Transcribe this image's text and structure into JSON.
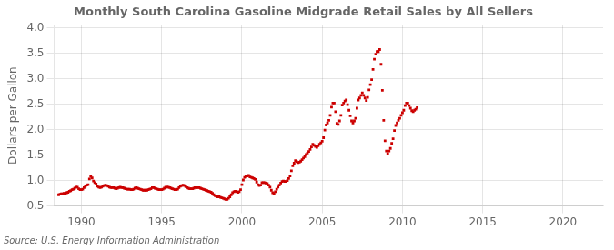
{
  "chart_data": {
    "type": "scatter",
    "title": "Monthly South Carolina Gasoline Midgrade Retail Sales by All Sellers",
    "y_label": "Dollars per Gallon",
    "annotations": [
      "Source: U.S. Energy Information Administration"
    ],
    "color": "#cc0000",
    "marker": "square",
    "grid": true,
    "xlim": [
      1988.3,
      2022.5
    ],
    "ylim": [
      0.5,
      4.05
    ],
    "xticks": [
      1990,
      1995,
      2000,
      2005,
      2010,
      2015,
      2020
    ],
    "yticks": [
      0.5,
      {
        "value": 1.0,
        "label": "1.0"
      },
      1.5,
      {
        "value": 2.0,
        "label": "2.0"
      },
      2.5,
      {
        "value": 3.0,
        "label": "3.0"
      },
      3.5,
      {
        "value": 4.0,
        "label": "4.0"
      }
    ],
    "x": [
      1988.583,
      1988.667,
      1988.75,
      1988.833,
      1988.917,
      1989.0,
      1989.083,
      1989.167,
      1989.25,
      1989.333,
      1989.417,
      1989.5,
      1989.583,
      1989.667,
      1989.75,
      1989.833,
      1989.917,
      1990.0,
      1990.083,
      1990.167,
      1990.25,
      1990.333,
      1990.417,
      1990.5,
      1990.583,
      1990.667,
      1990.75,
      1990.833,
      1990.917,
      1991.0,
      1991.083,
      1991.167,
      1991.25,
      1991.333,
      1991.417,
      1991.5,
      1991.583,
      1991.667,
      1991.75,
      1991.833,
      1991.917,
      1992.0,
      1992.083,
      1992.167,
      1992.25,
      1992.333,
      1992.417,
      1992.5,
      1992.583,
      1992.667,
      1992.75,
      1992.833,
      1992.917,
      1993.0,
      1993.083,
      1993.167,
      1993.25,
      1993.333,
      1993.417,
      1993.5,
      1993.583,
      1993.667,
      1993.75,
      1993.833,
      1993.917,
      1994.0,
      1994.083,
      1994.167,
      1994.25,
      1994.333,
      1994.417,
      1994.5,
      1994.583,
      1994.667,
      1994.75,
      1994.833,
      1994.917,
      1995.0,
      1995.083,
      1995.167,
      1995.25,
      1995.333,
      1995.417,
      1995.5,
      1995.583,
      1995.667,
      1995.75,
      1995.833,
      1995.917,
      1996.0,
      1996.083,
      1996.167,
      1996.25,
      1996.333,
      1996.417,
      1996.5,
      1996.583,
      1996.667,
      1996.75,
      1996.833,
      1996.917,
      1997.0,
      1997.083,
      1997.167,
      1997.25,
      1997.333,
      1997.417,
      1997.5,
      1997.583,
      1997.667,
      1997.75,
      1997.833,
      1997.917,
      1998.0,
      1998.083,
      1998.167,
      1998.25,
      1998.333,
      1998.417,
      1998.5,
      1998.583,
      1998.667,
      1998.75,
      1998.833,
      1998.917,
      1999.0,
      1999.083,
      1999.167,
      1999.25,
      1999.333,
      1999.417,
      1999.5,
      1999.583,
      1999.667,
      1999.75,
      1999.833,
      1999.917,
      2000.0,
      2000.083,
      2000.167,
      2000.25,
      2000.333,
      2000.417,
      2000.5,
      2000.583,
      2000.667,
      2000.75,
      2000.833,
      2000.917,
      2001.0,
      2001.083,
      2001.167,
      2001.25,
      2001.333,
      2001.417,
      2001.5,
      2001.583,
      2001.667,
      2001.75,
      2001.833,
      2001.917,
      2002.0,
      2002.083,
      2002.167,
      2002.25,
      2002.333,
      2002.417,
      2002.5,
      2002.583,
      2002.667,
      2002.75,
      2002.833,
      2002.917,
      2003.0,
      2003.083,
      2003.167,
      2003.25,
      2003.333,
      2003.417,
      2003.5,
      2003.583,
      2003.667,
      2003.75,
      2003.833,
      2003.917,
      2004.0,
      2004.083,
      2004.167,
      2004.25,
      2004.333,
      2004.417,
      2004.5,
      2004.583,
      2004.667,
      2004.75,
      2004.833,
      2004.917,
      2005.0,
      2005.083,
      2005.167,
      2005.25,
      2005.333,
      2005.417,
      2005.5,
      2005.583,
      2005.667,
      2005.75,
      2005.833,
      2005.917,
      2006.0,
      2006.083,
      2006.167,
      2006.25,
      2006.333,
      2006.417,
      2006.5,
      2006.583,
      2006.667,
      2006.75,
      2006.833,
      2006.917,
      2007.0,
      2007.083,
      2007.167,
      2007.25,
      2007.333,
      2007.417,
      2007.5,
      2007.583,
      2007.667,
      2007.75,
      2007.833,
      2007.917,
      2008.0,
      2008.083,
      2008.167,
      2008.25,
      2008.333,
      2008.417,
      2008.5,
      2008.583,
      2008.667,
      2008.75,
      2008.833,
      2008.917,
      2009.0,
      2009.083,
      2009.167,
      2009.25,
      2009.333,
      2009.417,
      2009.5,
      2009.583,
      2009.667,
      2009.75,
      2009.833,
      2009.917,
      2010.0,
      2010.083,
      2010.167,
      2010.25,
      2010.333,
      2010.417,
      2010.5,
      2010.583,
      2010.667,
      2010.75,
      2010.833,
      2010.917
    ],
    "values": [
      0.72,
      0.73,
      0.74,
      0.74,
      0.75,
      0.75,
      0.76,
      0.77,
      0.79,
      0.8,
      0.82,
      0.83,
      0.85,
      0.87,
      0.87,
      0.84,
      0.82,
      0.82,
      0.83,
      0.86,
      0.89,
      0.91,
      0.92,
      1.03,
      1.08,
      1.05,
      0.99,
      0.96,
      0.93,
      0.89,
      0.87,
      0.86,
      0.87,
      0.89,
      0.9,
      0.91,
      0.9,
      0.89,
      0.87,
      0.86,
      0.86,
      0.86,
      0.85,
      0.84,
      0.85,
      0.86,
      0.87,
      0.86,
      0.86,
      0.85,
      0.84,
      0.83,
      0.83,
      0.83,
      0.82,
      0.82,
      0.83,
      0.85,
      0.86,
      0.85,
      0.84,
      0.83,
      0.82,
      0.81,
      0.81,
      0.81,
      0.81,
      0.82,
      0.83,
      0.84,
      0.86,
      0.86,
      0.85,
      0.84,
      0.83,
      0.82,
      0.82,
      0.82,
      0.83,
      0.85,
      0.87,
      0.87,
      0.87,
      0.86,
      0.85,
      0.84,
      0.83,
      0.82,
      0.82,
      0.83,
      0.86,
      0.89,
      0.9,
      0.91,
      0.9,
      0.88,
      0.86,
      0.85,
      0.84,
      0.84,
      0.84,
      0.85,
      0.86,
      0.86,
      0.86,
      0.86,
      0.85,
      0.84,
      0.83,
      0.82,
      0.81,
      0.8,
      0.79,
      0.78,
      0.77,
      0.75,
      0.72,
      0.7,
      0.69,
      0.68,
      0.68,
      0.67,
      0.66,
      0.65,
      0.64,
      0.63,
      0.63,
      0.65,
      0.68,
      0.72,
      0.76,
      0.78,
      0.79,
      0.78,
      0.77,
      0.78,
      0.82,
      0.92,
      1.01,
      1.06,
      1.08,
      1.09,
      1.1,
      1.07,
      1.06,
      1.05,
      1.04,
      1.02,
      0.97,
      0.92,
      0.9,
      0.91,
      0.96,
      0.96,
      0.96,
      0.95,
      0.94,
      0.91,
      0.87,
      0.81,
      0.76,
      0.75,
      0.78,
      0.83,
      0.87,
      0.91,
      0.95,
      0.98,
      0.99,
      0.98,
      0.98,
      1.0,
      1.04,
      1.09,
      1.19,
      1.29,
      1.34,
      1.39,
      1.37,
      1.35,
      1.36,
      1.38,
      1.41,
      1.44,
      1.47,
      1.51,
      1.54,
      1.57,
      1.61,
      1.66,
      1.71,
      1.69,
      1.67,
      1.65,
      1.68,
      1.71,
      1.74,
      1.77,
      1.84,
      1.99,
      2.09,
      2.13,
      2.18,
      2.28,
      2.44,
      2.52,
      2.52,
      2.35,
      2.12,
      2.1,
      2.17,
      2.28,
      2.48,
      2.52,
      2.56,
      2.58,
      2.49,
      2.38,
      2.27,
      2.17,
      2.13,
      2.17,
      2.22,
      2.42,
      2.58,
      2.62,
      2.67,
      2.72,
      2.67,
      2.62,
      2.57,
      2.63,
      2.78,
      2.88,
      2.98,
      3.18,
      3.38,
      3.48,
      3.53,
      3.53,
      3.57,
      3.28,
      2.77,
      2.18,
      1.78,
      1.58,
      1.53,
      1.58,
      1.63,
      1.73,
      1.82,
      1.98,
      2.08,
      2.13,
      2.18,
      2.22,
      2.28,
      2.33,
      2.38,
      2.47,
      2.52,
      2.52,
      2.47,
      2.42,
      2.37,
      2.35,
      2.38,
      2.4,
      2.43
    ]
  }
}
